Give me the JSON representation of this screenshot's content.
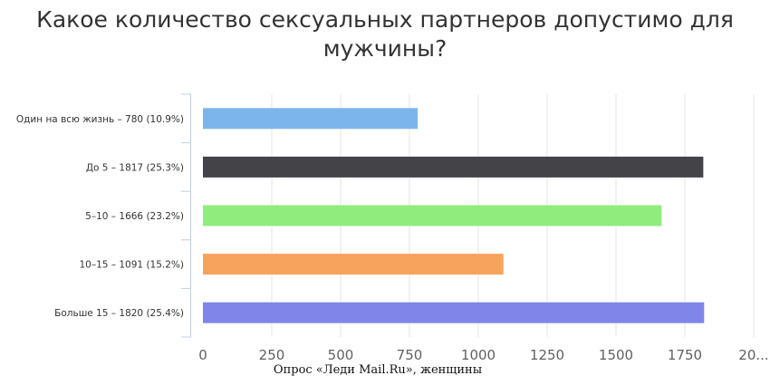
{
  "title": {
    "line1": "Какое количество сексуальных партнеров допустимо для",
    "line2": "мужчины?"
  },
  "source": "Опрос «Леди Mail.Ru», женщины",
  "chart_data": {
    "type": "bar",
    "orientation": "horizontal",
    "title": "Какое количество сексуальных партнеров допустимо для мужчины?",
    "categories": [
      "Один на всю жизнь – 780 (10.9%)",
      "До 5 – 1817 (25.3%)",
      "5–10 – 1666 (23.2%)",
      "10–15 – 1091 (15.2%)",
      "Больше 15 – 1820 (25.4%)"
    ],
    "values": [
      780,
      1817,
      1666,
      1091,
      1820
    ],
    "colors": [
      "#7cb5ec",
      "#434348",
      "#90ed7d",
      "#f7a35c",
      "#8085e9"
    ],
    "x_ticks": [
      "0",
      "250",
      "500",
      "750",
      "1000",
      "1250",
      "1500",
      "1750",
      "20..."
    ],
    "xlim": [
      0,
      2000
    ],
    "grid": true
  }
}
